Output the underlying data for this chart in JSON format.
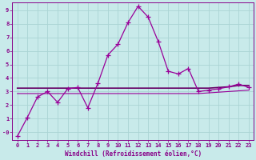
{
  "xlabel": "Windchill (Refroidissement éolien,°C)",
  "bg_color": "#c8eaea",
  "grid_color": "#aad4d4",
  "line_color": "#990099",
  "line2_color": "#660066",
  "x": [
    0,
    1,
    2,
    3,
    4,
    5,
    6,
    7,
    8,
    9,
    10,
    11,
    12,
    13,
    14,
    15,
    16,
    17,
    18,
    19,
    20,
    21,
    22,
    23
  ],
  "y_windchill": [
    -0.3,
    1.1,
    2.6,
    3.0,
    2.2,
    3.2,
    3.3,
    1.8,
    3.6,
    5.7,
    6.5,
    8.1,
    9.3,
    8.5,
    6.7,
    4.5,
    4.3,
    4.7,
    3.0,
    3.1,
    3.2,
    3.35,
    3.55,
    3.3
  ],
  "y_upper_flat": [
    3.25,
    3.25,
    3.25,
    3.25,
    3.25,
    3.25,
    3.25,
    3.25,
    3.25,
    3.25,
    3.25,
    3.25,
    3.25,
    3.25,
    3.25,
    3.25,
    3.25,
    3.25,
    3.25,
    3.25,
    3.3,
    3.35,
    3.45,
    3.45
  ],
  "y_lower_flat": [
    2.85,
    2.85,
    2.85,
    2.85,
    2.85,
    2.85,
    2.85,
    2.85,
    2.85,
    2.85,
    2.85,
    2.85,
    2.85,
    2.85,
    2.85,
    2.85,
    2.85,
    2.85,
    2.85,
    2.9,
    2.95,
    3.0,
    3.05,
    3.1
  ],
  "ylim": [
    -0.6,
    9.6
  ],
  "xlim": [
    -0.5,
    23.5
  ],
  "yticks": [
    0,
    1,
    2,
    3,
    4,
    5,
    6,
    7,
    8,
    9
  ],
  "ytick_labels": [
    "-0",
    "1",
    "2",
    "3",
    "4",
    "5",
    "6",
    "7",
    "8",
    "9"
  ],
  "xticks": [
    0,
    1,
    2,
    3,
    4,
    5,
    6,
    7,
    8,
    9,
    10,
    11,
    12,
    13,
    14,
    15,
    16,
    17,
    18,
    19,
    20,
    21,
    22,
    23
  ],
  "marker": "+",
  "markersize": 4,
  "linewidth": 0.9,
  "font_color": "#880088",
  "axis_fontsize": 5.5,
  "tick_fontsize": 5.0
}
